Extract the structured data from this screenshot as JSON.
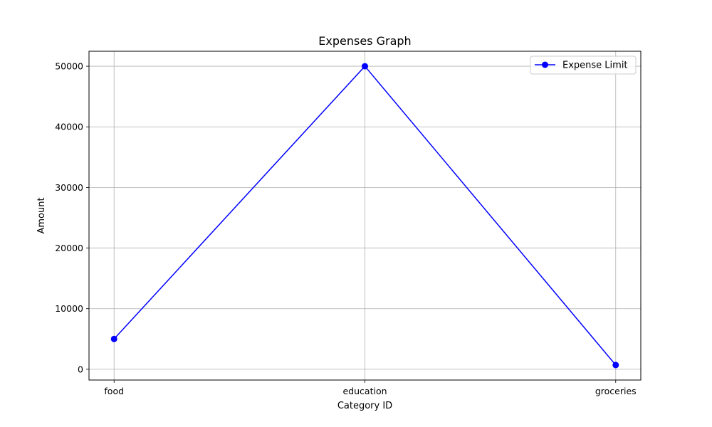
{
  "chart_data": {
    "type": "line",
    "title": "Expenses Graph",
    "xlabel": "Category ID",
    "ylabel": "Amount",
    "categories": [
      "food",
      "education",
      "groceries"
    ],
    "series": [
      {
        "name": "Expense Limit",
        "values": [
          5000,
          50000,
          700
        ],
        "color": "#0000ff"
      }
    ],
    "ylim": [
      -1775,
      52475
    ],
    "yticks": [
      0,
      10000,
      20000,
      30000,
      40000,
      50000
    ],
    "grid": true,
    "legend_position": "top-right"
  }
}
